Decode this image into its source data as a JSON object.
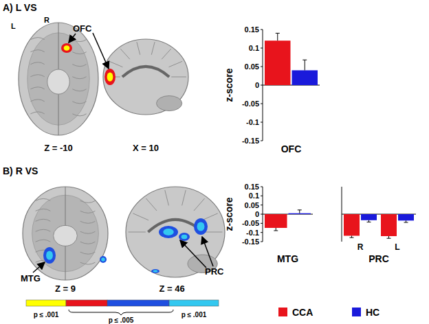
{
  "figure": {
    "panel_a": {
      "title": "A) L VS",
      "region": "OFC",
      "hemi_left": "L",
      "hemi_right": "R",
      "slice_1": "Z = -10",
      "slice_2": "X = 10"
    },
    "panel_b": {
      "title": "B) R VS",
      "region_1": "MTG",
      "region_2": "PRC",
      "slice_1": "Z = 9",
      "slice_2": "Z = 46"
    },
    "colorbar": {
      "colors": [
        "#ffff00",
        "#e8141c",
        "#1f4fe0",
        "#33c8f0"
      ],
      "labels": [
        "p ≤ .001",
        "p ≤ .005",
        "p ≤ .001"
      ]
    }
  },
  "chart_data": [
    {
      "type": "bar",
      "y_label": "z-score",
      "categories": [
        "OFC"
      ],
      "series": [
        {
          "name": "CCA",
          "color": "#e8141c",
          "values": [
            0.12
          ],
          "errors": [
            0.02
          ]
        },
        {
          "name": "HC",
          "color": "#1a1adb",
          "values": [
            0.04
          ],
          "errors": [
            0.028
          ]
        }
      ],
      "ylim": [
        -0.15,
        0.15
      ],
      "yticks": [
        -0.15,
        -0.1,
        -0.05,
        0,
        0.05,
        0.1,
        0.15
      ],
      "legend": "bottom"
    },
    {
      "type": "bar",
      "y_label": "z-score",
      "categories": [
        "MTG"
      ],
      "series": [
        {
          "name": "CCA",
          "color": "#e8141c",
          "values": [
            -0.075
          ],
          "errors": [
            0.015
          ]
        },
        {
          "name": "HC",
          "color": "#1a1adb",
          "values": [
            0.005
          ],
          "errors": [
            0.018
          ]
        }
      ],
      "ylim": [
        -0.15,
        0.15
      ],
      "yticks": [
        -0.15,
        -0.1,
        -0.05,
        0,
        0.05,
        0.1,
        0.15
      ]
    },
    {
      "type": "bar",
      "x_label": "PRC",
      "categories": [
        "R",
        "L"
      ],
      "series": [
        {
          "name": "CCA",
          "color": "#e8141c",
          "values": [
            -0.118,
            -0.12
          ],
          "errors": [
            0.01,
            0.012
          ]
        },
        {
          "name": "HC",
          "color": "#1a1adb",
          "values": [
            -0.033,
            -0.035
          ],
          "errors": [
            0.01,
            0.01
          ]
        }
      ],
      "ylim": [
        -0.15,
        0.15
      ],
      "tick_labels": "x"
    }
  ]
}
